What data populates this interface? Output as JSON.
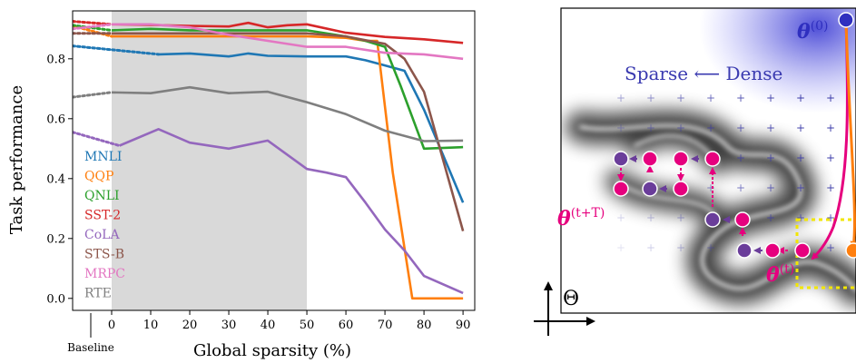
{
  "chart_data": [
    {
      "type": "line",
      "ylabel": "Task performance",
      "xlabel": "Global sparsity (%)",
      "baseline_label": "Baseline",
      "xlim": [
        -10,
        93
      ],
      "ylim": [
        -0.04,
        0.96
      ],
      "x_ticks": [
        0,
        10,
        20,
        30,
        40,
        50,
        60,
        70,
        80,
        90
      ],
      "x_tick_labels": [
        "0",
        "10",
        "20",
        "30",
        "40",
        "50",
        "60",
        "70",
        "80",
        "90"
      ],
      "y_ticks": [
        0.0,
        0.2,
        0.4,
        0.6,
        0.8
      ],
      "y_tick_labels": [
        "0.0",
        "0.2",
        "0.4",
        "0.6",
        "0.8"
      ],
      "shaded_range": [
        0,
        50
      ],
      "grid": false,
      "legend_position": "left",
      "series": [
        {
          "name": "MNLI",
          "color": "#1f77b4",
          "baseline": 0.843,
          "x": [
            12,
            20,
            30,
            35,
            40,
            50,
            60,
            65,
            70,
            75,
            80,
            90
          ],
          "y": [
            0.815,
            0.818,
            0.808,
            0.818,
            0.81,
            0.808,
            0.808,
            0.795,
            0.778,
            0.76,
            0.63,
            0.32
          ]
        },
        {
          "name": "QQP",
          "color": "#ff7f0e",
          "baseline": 0.91,
          "x": [
            0,
            10,
            20,
            30,
            40,
            50,
            60,
            65,
            68,
            72,
            77,
            80,
            90
          ],
          "y": [
            0.875,
            0.875,
            0.875,
            0.875,
            0.875,
            0.875,
            0.87,
            0.86,
            0.86,
            0.42,
            0.0,
            0.0,
            0.0
          ]
        },
        {
          "name": "QNLI",
          "color": "#2ca02c",
          "baseline": 0.912,
          "x": [
            0,
            10,
            20,
            30,
            40,
            50,
            60,
            65,
            70,
            74,
            80,
            90
          ],
          "y": [
            0.895,
            0.9,
            0.895,
            0.895,
            0.895,
            0.895,
            0.875,
            0.86,
            0.84,
            0.71,
            0.5,
            0.505
          ]
        },
        {
          "name": "SST-2",
          "color": "#d62728",
          "baseline": 0.925,
          "x": [
            0,
            10,
            20,
            30,
            35,
            40,
            45,
            50,
            60,
            70,
            80,
            90
          ],
          "y": [
            0.915,
            0.913,
            0.91,
            0.908,
            0.92,
            0.905,
            0.912,
            0.915,
            0.887,
            0.873,
            0.865,
            0.853
          ]
        },
        {
          "name": "CoLA",
          "color": "#9467bd",
          "baseline": 0.555,
          "x": [
            2,
            12,
            20,
            30,
            40,
            50,
            55,
            60,
            65,
            70,
            75,
            80,
            90
          ],
          "y": [
            0.51,
            0.565,
            0.52,
            0.5,
            0.527,
            0.432,
            0.42,
            0.405,
            0.32,
            0.23,
            0.16,
            0.075,
            0.018
          ]
        },
        {
          "name": "STS-B",
          "color": "#8c564b",
          "baseline": 0.885,
          "x": [
            0,
            10,
            20,
            30,
            40,
            50,
            60,
            65,
            70,
            75,
            80,
            90
          ],
          "y": [
            0.885,
            0.885,
            0.885,
            0.885,
            0.885,
            0.885,
            0.875,
            0.862,
            0.85,
            0.8,
            0.69,
            0.225
          ]
        },
        {
          "name": "MRPC",
          "color": "#e377c2",
          "baseline": 0.9,
          "x": [
            0,
            10,
            20,
            30,
            40,
            50,
            60,
            70,
            80,
            90
          ],
          "y": [
            0.915,
            0.915,
            0.905,
            0.88,
            0.86,
            0.84,
            0.84,
            0.82,
            0.815,
            0.8
          ]
        },
        {
          "name": "RTE",
          "color": "#7f7f7f",
          "baseline": 0.672,
          "x": [
            0,
            10,
            20,
            30,
            40,
            50,
            60,
            70,
            80,
            90
          ],
          "y": [
            0.688,
            0.685,
            0.705,
            0.685,
            0.69,
            0.655,
            0.615,
            0.56,
            0.525,
            0.527
          ]
        }
      ]
    },
    {
      "type": "diagram",
      "axis_label": "Θ",
      "title_left": "Sparse",
      "title_arrow": "⟵",
      "title_right": "Dense",
      "labels": {
        "theta0_base": "θ",
        "theta0_sup": "(0)",
        "thetaT_base": "θ",
        "thetaT_sup": "(t+T)",
        "thetat_base": "θ",
        "thetat_sup": "(t)"
      },
      "colors": {
        "magenta": "#e6007e",
        "purple": "#6a3d9a",
        "blue": "#2f2fbf",
        "orange": "#ff7f0e",
        "yellow": "#f2e600"
      }
    }
  ]
}
